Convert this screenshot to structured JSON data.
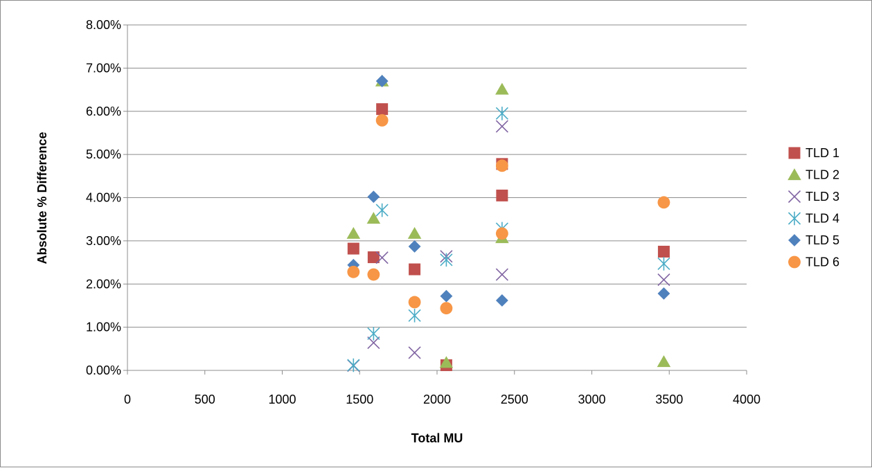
{
  "chart_data": {
    "type": "scatter",
    "xlabel": "Total MU",
    "ylabel": "Absolute % Difference",
    "xlim": [
      0,
      4000
    ],
    "ylim": [
      0,
      0.08
    ],
    "x_ticks": [
      0,
      500,
      1000,
      1500,
      2000,
      2500,
      3000,
      3500,
      4000
    ],
    "x_tick_labels": [
      "0",
      "500",
      "1000",
      "1500",
      "2000",
      "2500",
      "3000",
      "3500",
      "4000"
    ],
    "y_ticks": [
      0,
      0.01,
      0.02,
      0.03,
      0.04,
      0.05,
      0.06,
      0.07,
      0.08
    ],
    "y_tick_labels": [
      "0.00%",
      "1.00%",
      "2.00%",
      "3.00%",
      "4.00%",
      "5.00%",
      "6.00%",
      "7.00%",
      "8.00%"
    ],
    "grid": "horizontal",
    "legend_position": "right",
    "series": [
      {
        "name": "TLD 1",
        "marker": "square",
        "color": "#c0504d",
        "points": [
          [
            1460,
            0.0282
          ],
          [
            1590,
            0.0262
          ],
          [
            1645,
            0.0605
          ],
          [
            1855,
            0.0234
          ],
          [
            2060,
            0.0012
          ],
          [
            2420,
            0.0478
          ],
          [
            2420,
            0.0405
          ],
          [
            3465,
            0.0275
          ]
        ]
      },
      {
        "name": "TLD 2",
        "marker": "triangle",
        "color": "#9bbb59",
        "points": [
          [
            1460,
            0.0317
          ],
          [
            1590,
            0.0352
          ],
          [
            1645,
            0.067
          ],
          [
            1855,
            0.0317
          ],
          [
            2060,
            0.0018
          ],
          [
            2420,
            0.0651
          ],
          [
            2420,
            0.0307
          ],
          [
            3465,
            0.002
          ]
        ]
      },
      {
        "name": "TLD 3",
        "marker": "x",
        "color": "#8064a2",
        "points": [
          [
            1460,
            0.0011
          ],
          [
            1590,
            0.0064
          ],
          [
            1645,
            0.0261
          ],
          [
            1855,
            0.0041
          ],
          [
            2060,
            0.0264
          ],
          [
            2420,
            0.0565
          ],
          [
            2420,
            0.0222
          ],
          [
            3465,
            0.021
          ]
        ]
      },
      {
        "name": "TLD 4",
        "marker": "star",
        "color": "#4bacc6",
        "points": [
          [
            1460,
            0.0012
          ],
          [
            1590,
            0.0085
          ],
          [
            1645,
            0.0371
          ],
          [
            1855,
            0.0127
          ],
          [
            2060,
            0.0256
          ],
          [
            2420,
            0.0595
          ],
          [
            2420,
            0.0328
          ],
          [
            3465,
            0.0247
          ]
        ]
      },
      {
        "name": "TLD 5",
        "marker": "diamond",
        "color": "#4f81bd",
        "points": [
          [
            1460,
            0.0244
          ],
          [
            1590,
            0.0402
          ],
          [
            1645,
            0.067
          ],
          [
            1855,
            0.0287
          ],
          [
            2060,
            0.0172
          ],
          [
            2420,
            0.0162
          ],
          [
            3465,
            0.0178
          ]
        ]
      },
      {
        "name": "TLD 6",
        "marker": "circle",
        "color": "#f79646",
        "points": [
          [
            1460,
            0.0228
          ],
          [
            1590,
            0.0222
          ],
          [
            1645,
            0.0579
          ],
          [
            1855,
            0.0158
          ],
          [
            2060,
            0.0144
          ],
          [
            2420,
            0.0474
          ],
          [
            2420,
            0.0317
          ],
          [
            3465,
            0.0389
          ]
        ]
      }
    ]
  }
}
